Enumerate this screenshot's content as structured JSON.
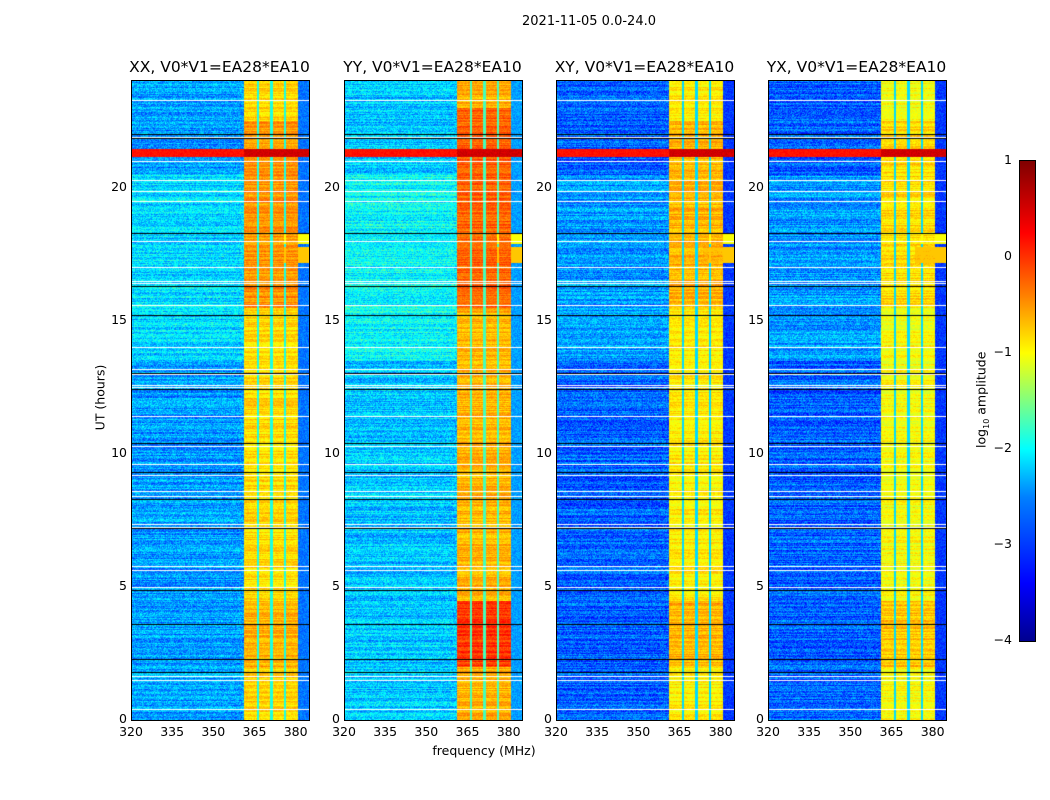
{
  "chart_data": {
    "type": "heatmap",
    "title": "2021-11-05 0.0-24.0",
    "xlabel": "frequency (MHz)",
    "ylabel": "UT (hours)",
    "xlim": [
      320,
      384.5
    ],
    "ylim": [
      0,
      24
    ],
    "xticks": [
      "320",
      "335",
      "350",
      "365",
      "380"
    ],
    "xtick_values": [
      320,
      335,
      350,
      365,
      380
    ],
    "yticks": [
      "0",
      "5",
      "10",
      "15",
      "20"
    ],
    "ytick_values": [
      0,
      5,
      10,
      15,
      20
    ],
    "colorbar": {
      "label_prefix": "log",
      "label_sub": "10",
      "label_suffix": " amplitude",
      "range": [
        -4,
        1
      ],
      "ticks": [
        "1",
        "0",
        "−1",
        "−2",
        "−3",
        "−4"
      ],
      "tick_values": [
        1,
        0,
        -1,
        -2,
        -3,
        -4
      ],
      "colormap": "jet"
    },
    "band_mhz": [
      360.7,
      380.4
    ],
    "band_gaps_mhz": [
      365.8,
      370.6,
      375.6
    ],
    "flagged_hours_white": [
      0.4,
      1.5,
      1.65,
      5.0,
      5.65,
      5.8,
      7.25,
      7.35,
      8.4,
      8.6,
      9.2,
      9.6,
      10.3,
      11.4,
      12.5,
      12.6,
      13.0,
      13.2,
      14.0,
      15.6,
      16.4,
      16.5,
      17.0,
      18.0,
      19.5,
      19.85,
      20.3,
      21.0,
      21.9,
      23.3
    ],
    "flagged_hours_black": [
      1.8,
      2.3,
      3.6,
      4.9,
      7.2,
      8.3,
      9.3,
      10.4,
      12.45,
      13.05,
      15.2,
      16.3,
      18.3,
      21.85,
      22.0
    ],
    "rfi_rows": [
      {
        "hour": 21.3,
        "width": 0.15,
        "level": 0.6,
        "full_band": true
      },
      {
        "hour": 17.5,
        "width": 0.3,
        "level": -0.6,
        "full_band": false
      },
      {
        "hour": 18.1,
        "width": 0.2,
        "level": -0.9,
        "full_band": false
      }
    ],
    "panels": [
      {
        "title": "XX, V0*V1=EA28*EA10",
        "background": -2.6,
        "band_level": -0.7,
        "hot_periods": [
          [
            2.0,
            4.5,
            0.2
          ],
          [
            15.5,
            22.5,
            0.35
          ]
        ]
      },
      {
        "title": "YY, V0*V1=EA28*EA10",
        "background": -2.4,
        "band_level": -0.5,
        "hot_periods": [
          [
            2.0,
            4.5,
            0.6
          ],
          [
            15.5,
            23.0,
            0.4
          ]
        ]
      },
      {
        "title": "XY, V0*V1=EA28*EA10",
        "background": -2.9,
        "band_level": -0.8,
        "hot_periods": [
          [
            2.0,
            4.5,
            0.3
          ],
          [
            15.5,
            22.5,
            0.3
          ]
        ]
      },
      {
        "title": "YX, V0*V1=EA28*EA10",
        "background": -2.9,
        "band_level": -0.9,
        "hot_periods": [
          [
            2.0,
            4.5,
            0.3
          ],
          [
            15.5,
            22.5,
            0.2
          ]
        ]
      }
    ]
  }
}
